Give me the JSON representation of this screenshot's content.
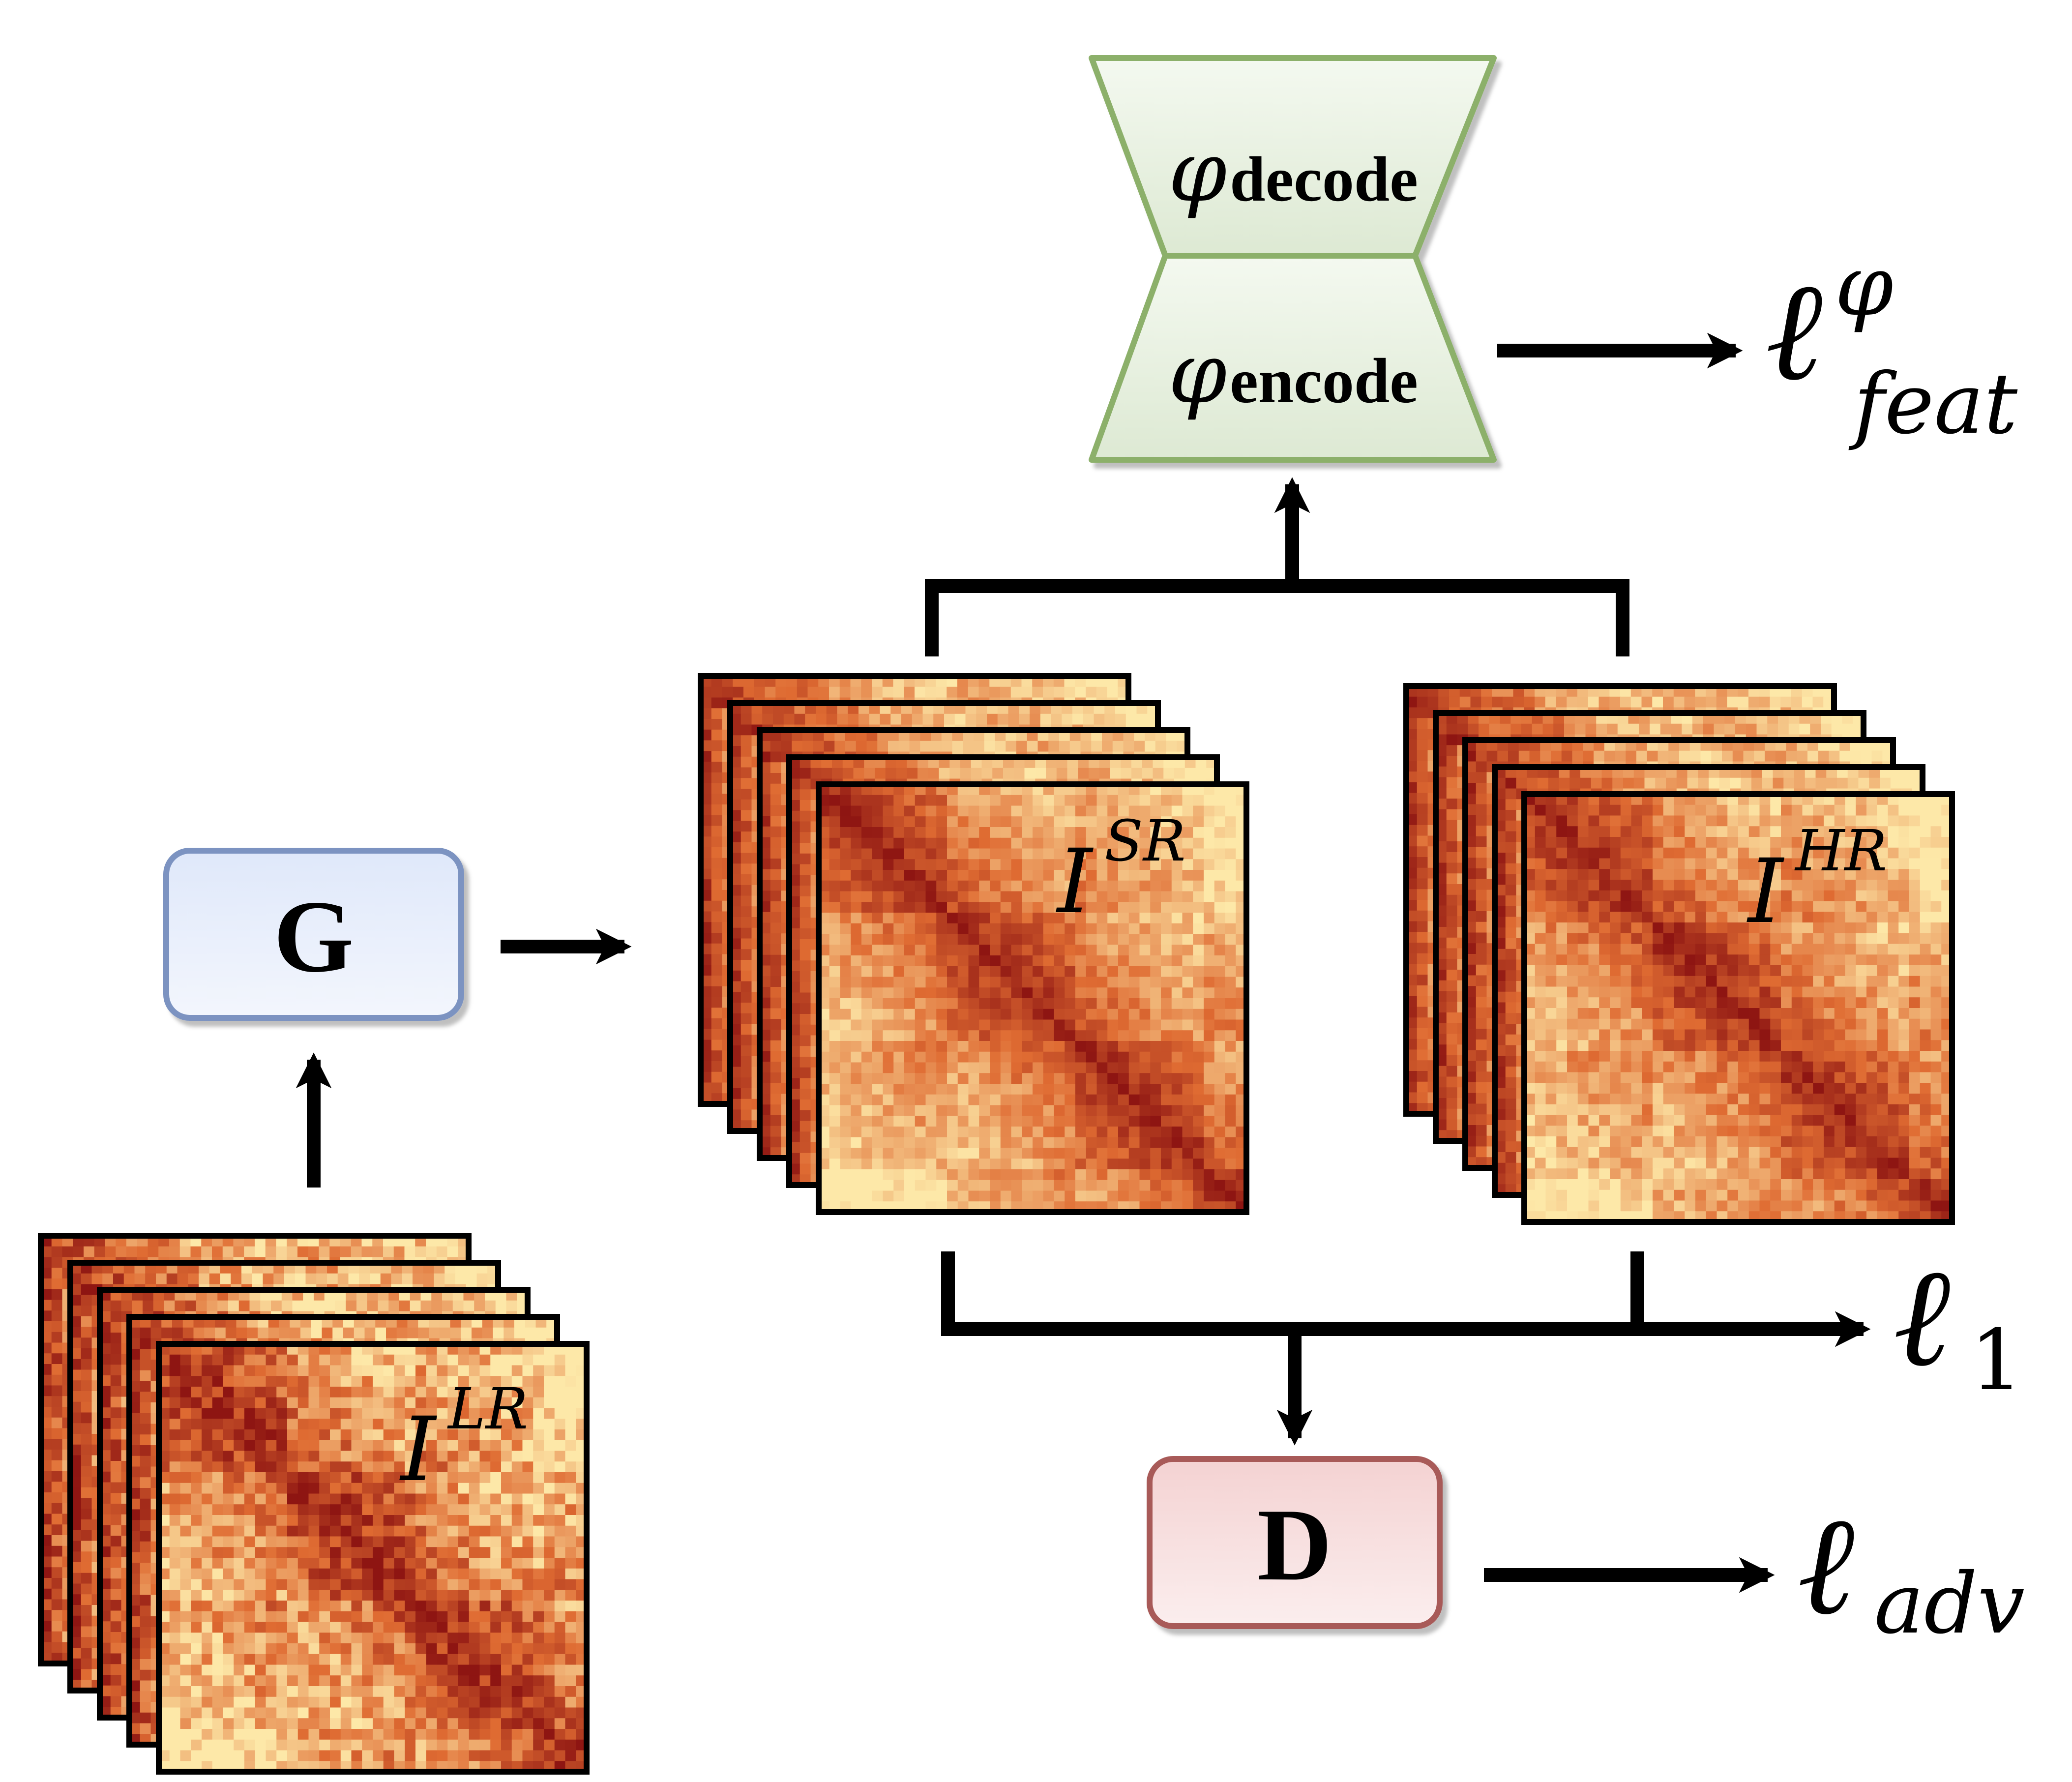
{
  "colors": {
    "generator_fill": "#e8eefb",
    "generator_stroke": "#7b93c1",
    "discriminator_fill": "#f6dcdc",
    "discriminator_stroke": "#a85a58",
    "autoencoder_fill": "#e9f2e3",
    "autoencoder_stroke": "#8cb06a",
    "heatmap_dark": "#8e1512",
    "heatmap_mid": "#df6b32",
    "heatmap_light": "#fde8a8"
  },
  "generator": {
    "label": "G"
  },
  "discriminator": {
    "label": "D"
  },
  "autoencoder": {
    "decode_symbol": "φ",
    "decode_sub": "decode",
    "encode_symbol": "φ",
    "encode_sub": "encode"
  },
  "stacks": {
    "lr": {
      "base": "I",
      "sup": "LR"
    },
    "sr": {
      "base": "I",
      "sup": "SR"
    },
    "hr": {
      "base": "I",
      "sup": "HR"
    }
  },
  "losses": {
    "feat": {
      "symbol": "ℓ",
      "sup": "φ",
      "sub": "feat"
    },
    "l1": {
      "symbol": "ℓ",
      "sub": "1"
    },
    "adv": {
      "symbol": "ℓ",
      "sub": "adv"
    }
  }
}
